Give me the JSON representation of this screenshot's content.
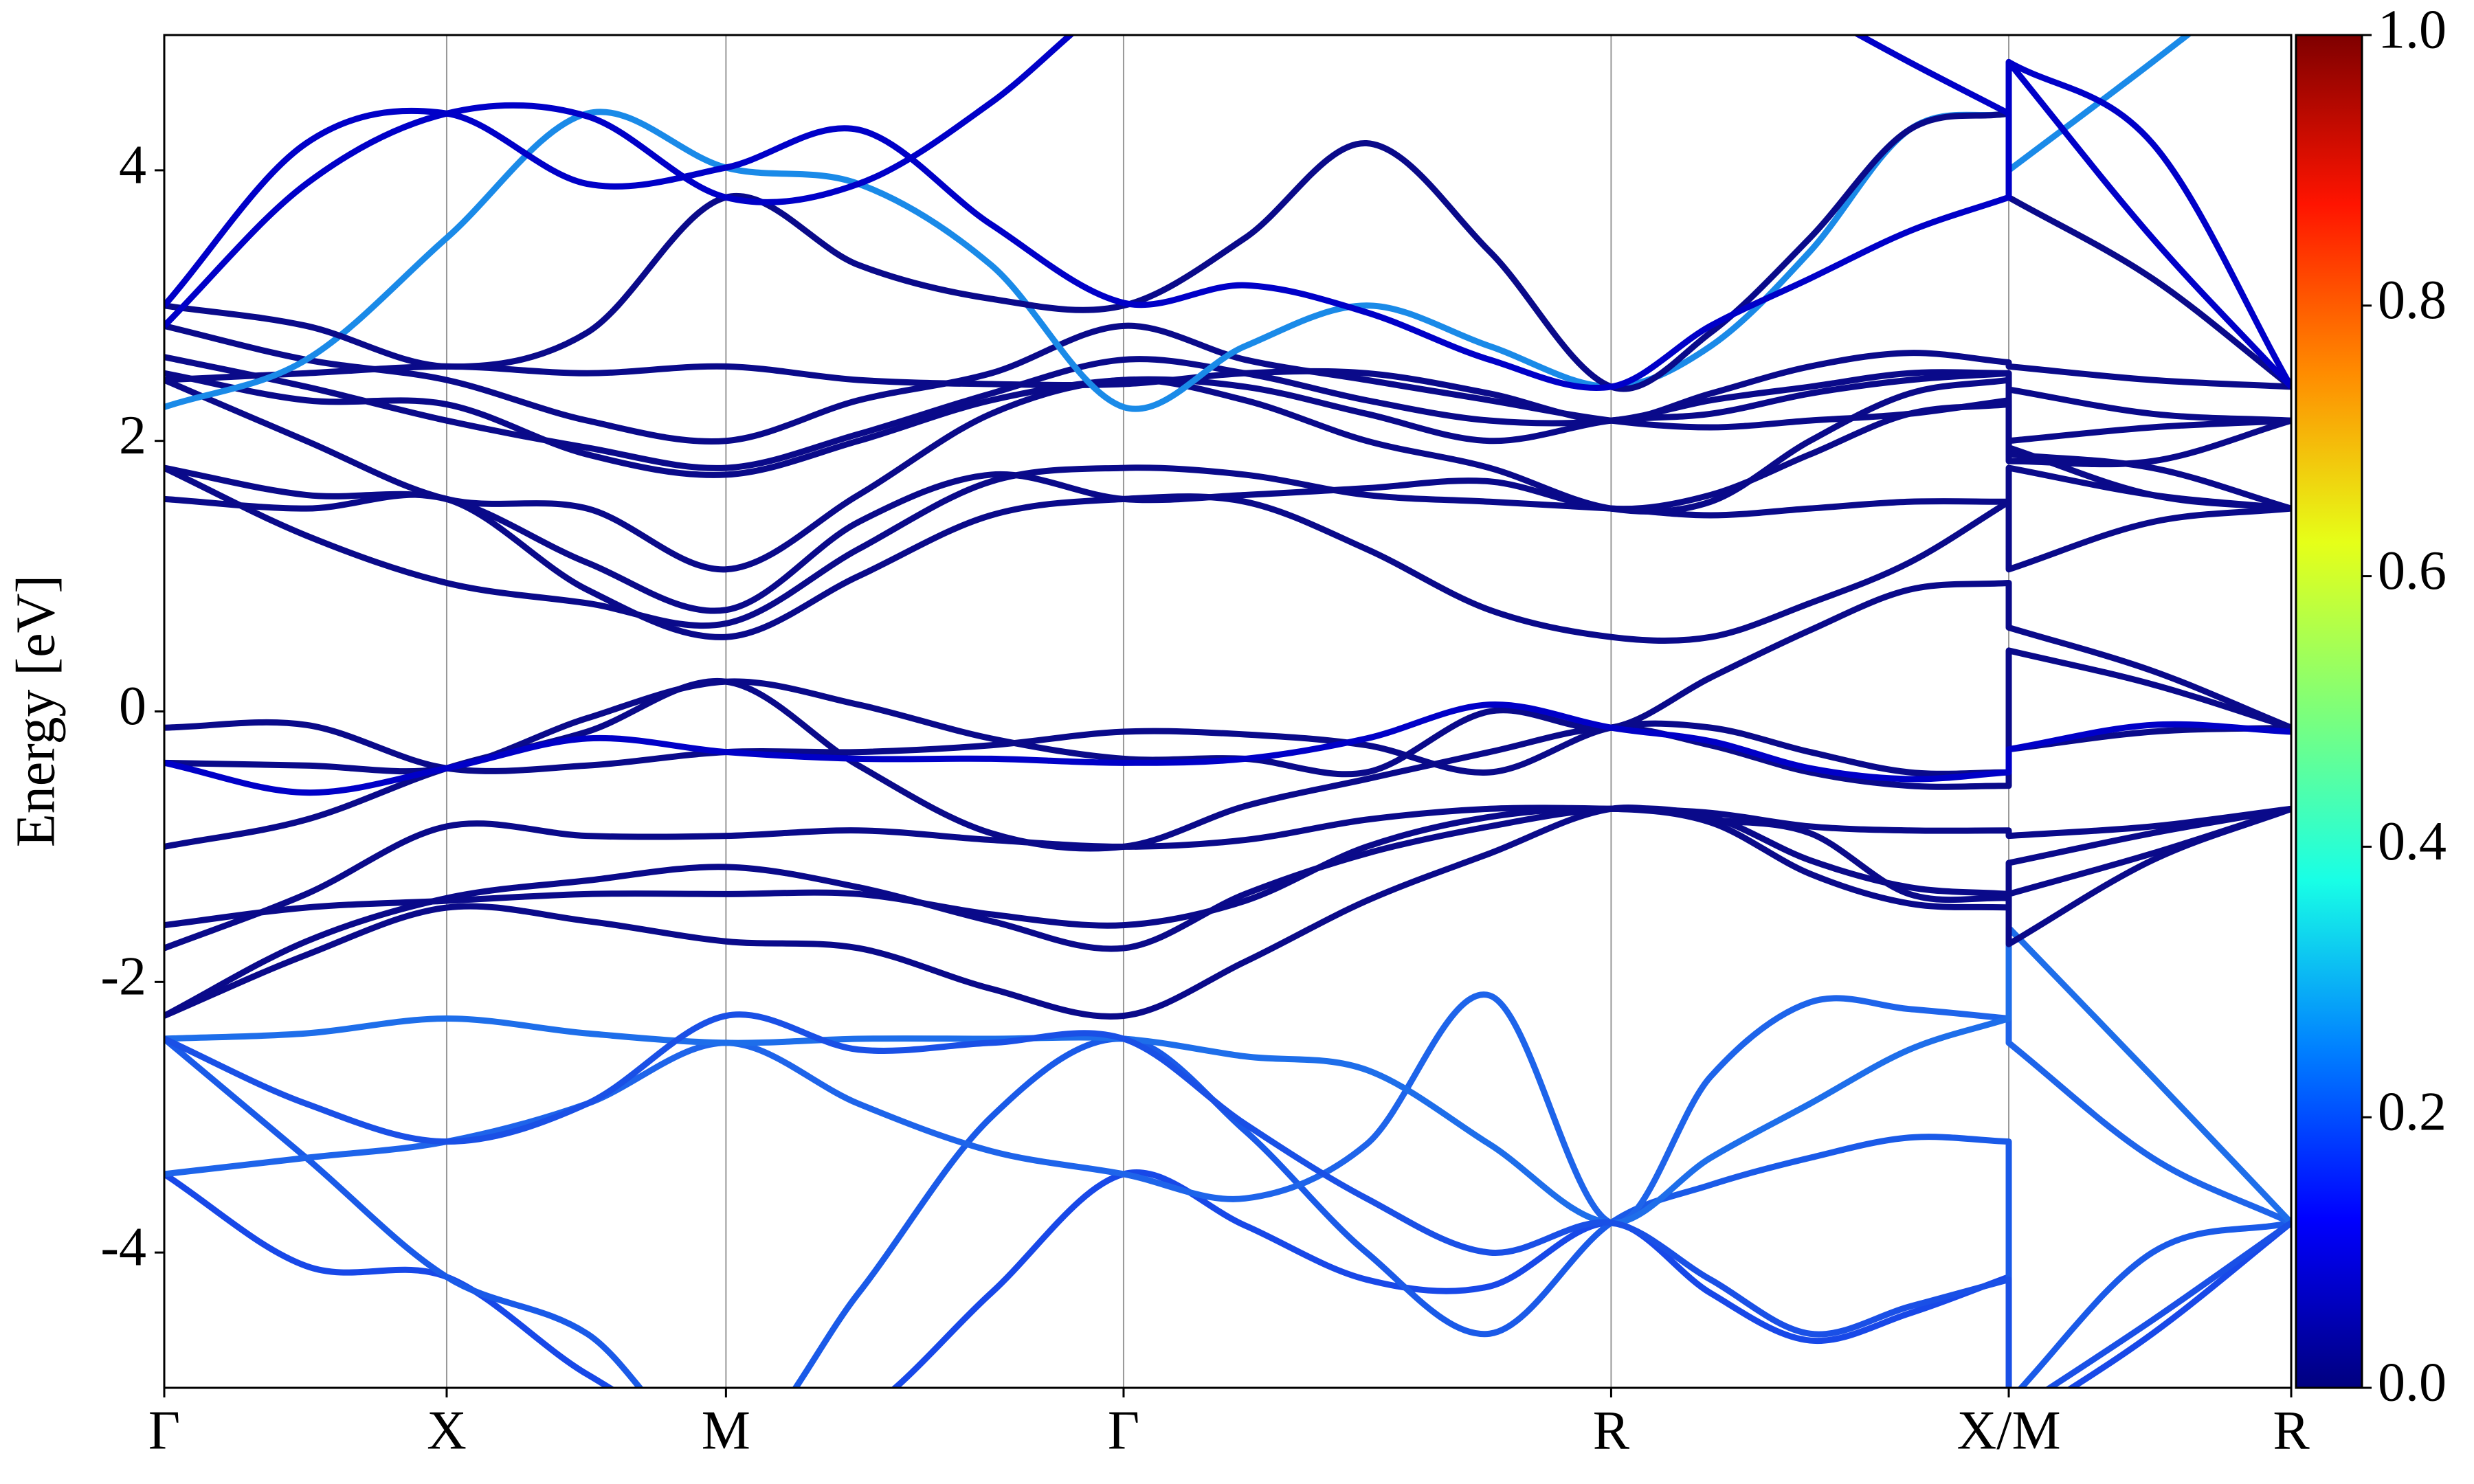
{
  "chart_data": {
    "type": "line",
    "ylabel": "Energy [eV]",
    "xlim": [
      0,
      13.48
    ],
    "ylim": [
      -5,
      5
    ],
    "yticks": [
      -4,
      -2,
      0,
      2,
      4
    ],
    "xticks": [
      {
        "value": 0,
        "label": "Γ"
      },
      {
        "value": 1.79,
        "label": "X"
      },
      {
        "value": 3.56,
        "label": "M"
      },
      {
        "value": 6.08,
        "label": "Γ"
      },
      {
        "value": 9.17,
        "label": "R"
      },
      {
        "value": 11.69,
        "label": "X/M"
      },
      {
        "value": 13.48,
        "label": "R"
      }
    ],
    "grid": true,
    "x": [
      0,
      0.9,
      1.79,
      2.68,
      3.56,
      4.4,
      5.24,
      6.08,
      6.85,
      7.62,
      8.4,
      9.17,
      9.8,
      10.43,
      11.06,
      11.69,
      11.69,
      12.6,
      13.48
    ],
    "series": [
      {
        "color": "#1848e8",
        "values": [
          -3.42,
          -4.1,
          -4.18,
          -4.9,
          -5.4,
          -5.2,
          -4.3,
          -3.42,
          -3.8,
          -4.2,
          -4.25,
          -3.78,
          -4.3,
          -4.65,
          -4.45,
          -4.18,
          -5.3,
          -4.6,
          -3.78
        ]
      },
      {
        "color": "#1a5ae8",
        "values": [
          -2.42,
          -3.3,
          -4.18,
          -4.6,
          -5.5,
          -4.3,
          -3.0,
          -2.42,
          -3.1,
          -4.0,
          -4.6,
          -3.78,
          -3.5,
          -3.3,
          -3.15,
          -3.18,
          -5.1,
          -4.0,
          -3.78
        ]
      },
      {
        "color": "#1e64ea",
        "values": [
          -3.42,
          -3.3,
          -3.18,
          -2.9,
          -2.45,
          -2.9,
          -3.25,
          -3.42,
          -3.6,
          -3.2,
          -2.1,
          -3.78,
          -2.7,
          -2.15,
          -2.2,
          -2.27,
          -2.45,
          -3.3,
          -3.78
        ]
      },
      {
        "color": "#1e6eea",
        "values": [
          -2.42,
          -2.38,
          -2.27,
          -2.38,
          -2.45,
          -2.42,
          -2.42,
          -2.42,
          -2.55,
          -2.65,
          -3.2,
          -3.78,
          -3.3,
          -2.9,
          -2.5,
          -2.27,
          -1.6,
          -2.7,
          -3.78
        ]
      },
      {
        "color": "#1a50e6",
        "values": [
          -2.42,
          -2.9,
          -3.18,
          -2.9,
          -2.25,
          -2.5,
          -2.45,
          -2.42,
          -3.05,
          -3.6,
          -4.0,
          -3.78,
          -4.2,
          -4.6,
          -4.4,
          -4.2,
          -5.2,
          -4.5,
          -3.78
        ]
      },
      {
        "color": "#0a0a8a",
        "values": [
          -2.25,
          -1.8,
          -1.45,
          -1.55,
          -1.7,
          -1.75,
          -2.05,
          -2.25,
          -1.85,
          -1.4,
          -1.05,
          -0.72,
          -0.8,
          -0.9,
          -1.35,
          -1.38,
          -1.72,
          -1.1,
          -0.72
        ]
      },
      {
        "color": "#0a0a8a",
        "values": [
          -1.75,
          -1.35,
          -0.85,
          -0.92,
          -0.92,
          -0.88,
          -0.95,
          -1.0,
          -0.95,
          -0.8,
          -0.72,
          -0.72,
          -0.75,
          -0.85,
          -0.88,
          -0.88,
          -0.92,
          -0.85,
          -0.72
        ]
      },
      {
        "color": "#0a0a8a",
        "values": [
          -1.58,
          -1.45,
          -1.4,
          -1.35,
          -1.35,
          -1.35,
          -1.5,
          -1.58,
          -1.4,
          -1.0,
          -0.78,
          -0.72,
          -0.82,
          -1.2,
          -1.42,
          -1.45,
          -1.12,
          -0.9,
          -0.72
        ]
      },
      {
        "color": "#0a0a8a",
        "values": [
          -2.25,
          -1.7,
          -1.38,
          -1.25,
          -1.15,
          -1.3,
          -1.55,
          -1.75,
          -1.35,
          -1.05,
          -0.85,
          -0.72,
          -0.78,
          -1.1,
          -1.3,
          -1.35,
          -1.35,
          -1.05,
          -0.72
        ]
      },
      {
        "color": "#0a0a8a",
        "values": [
          -1.0,
          -0.8,
          -0.42,
          -0.15,
          0.22,
          -0.4,
          -0.9,
          -1.0,
          -0.7,
          -0.5,
          -0.3,
          -0.12,
          -0.25,
          -0.45,
          -0.55,
          -0.55,
          -0.28,
          -0.15,
          -0.12
        ]
      },
      {
        "color": "#0a0a8a",
        "values": [
          -0.38,
          -0.4,
          -0.42,
          -0.05,
          0.22,
          0.05,
          -0.2,
          -0.35,
          -0.35,
          -0.45,
          0.0,
          -0.12,
          0.25,
          0.6,
          0.9,
          0.95,
          0.62,
          0.3,
          -0.12
        ]
      },
      {
        "color": "#0a0a8a",
        "values": [
          -0.12,
          -0.1,
          -0.42,
          -0.4,
          -0.3,
          -0.3,
          -0.25,
          -0.15,
          -0.17,
          -0.25,
          -0.45,
          -0.12,
          -0.12,
          -0.3,
          -0.45,
          -0.45,
          0.45,
          0.2,
          -0.12
        ]
      },
      {
        "color": "#0000c8",
        "values": [
          -0.38,
          -0.6,
          -0.42,
          -0.2,
          -0.3,
          -0.35,
          -0.35,
          -0.38,
          -0.35,
          -0.2,
          0.05,
          -0.12,
          -0.22,
          -0.42,
          -0.5,
          -0.45,
          -0.28,
          -0.1,
          -0.15
        ]
      },
      {
        "color": "#0a0a8a",
        "values": [
          1.57,
          1.5,
          1.57,
          0.9,
          0.55,
          1.0,
          1.45,
          1.57,
          1.55,
          1.2,
          0.75,
          0.55,
          0.55,
          0.8,
          1.1,
          1.55,
          1.05,
          1.4,
          1.5
        ]
      },
      {
        "color": "#0a0a8a",
        "values": [
          1.8,
          1.3,
          0.95,
          0.8,
          0.65,
          1.2,
          1.7,
          1.8,
          1.75,
          1.6,
          1.55,
          1.5,
          1.45,
          1.5,
          1.55,
          1.55,
          1.8,
          1.6,
          1.5
        ]
      },
      {
        "color": "#0a0a8a",
        "values": [
          1.8,
          1.6,
          1.57,
          1.1,
          0.75,
          1.4,
          1.75,
          1.57,
          1.6,
          1.65,
          1.7,
          1.5,
          1.6,
          1.9,
          2.2,
          2.27,
          1.9,
          1.8,
          1.5
        ]
      },
      {
        "color": "#0a0a8a",
        "values": [
          2.45,
          2.0,
          1.57,
          1.5,
          1.05,
          1.6,
          2.2,
          2.45,
          2.3,
          2.0,
          1.8,
          1.5,
          1.55,
          2.0,
          2.35,
          2.45,
          1.95,
          1.6,
          1.5
        ]
      },
      {
        "color": "#0a0a8a",
        "values": [
          2.5,
          2.3,
          2.27,
          1.9,
          1.75,
          2.0,
          2.3,
          2.45,
          2.4,
          2.2,
          2.0,
          2.15,
          2.2,
          2.35,
          2.45,
          2.5,
          2.0,
          2.1,
          2.15
        ]
      },
      {
        "color": "#0a0a8a",
        "values": [
          2.62,
          2.4,
          2.15,
          1.95,
          1.8,
          2.05,
          2.35,
          2.6,
          2.5,
          2.3,
          2.15,
          2.15,
          2.3,
          2.4,
          2.5,
          2.5,
          2.38,
          2.2,
          2.15
        ]
      },
      {
        "color": "#0a0a8a",
        "values": [
          2.45,
          2.5,
          2.55,
          2.5,
          2.55,
          2.45,
          2.42,
          2.42,
          2.5,
          2.5,
          2.35,
          2.15,
          2.35,
          2.55,
          2.65,
          2.58,
          2.55,
          2.45,
          2.4
        ]
      },
      {
        "color": "#0a0a8a",
        "values": [
          2.85,
          2.6,
          2.45,
          2.15,
          2.0,
          2.3,
          2.5,
          2.85,
          2.6,
          2.45,
          2.3,
          2.15,
          2.1,
          2.15,
          2.2,
          2.3,
          1.85,
          1.85,
          2.15
        ]
      },
      {
        "color": "#1a8ae8",
        "values": [
          2.25,
          2.6,
          3.5,
          4.42,
          4.02,
          3.9,
          3.3,
          2.25,
          2.7,
          3.0,
          2.7,
          2.4,
          2.7,
          3.4,
          4.3,
          4.42,
          4.0,
          4.8,
          5.6
        ]
      },
      {
        "color": "#0a0a8a",
        "values": [
          3.0,
          2.85,
          2.55,
          2.8,
          3.8,
          3.3,
          3.05,
          3.0,
          3.5,
          4.2,
          3.4,
          2.4,
          2.8,
          3.5,
          4.3,
          4.42,
          3.8,
          3.2,
          2.4
        ]
      },
      {
        "color": "#0000c8",
        "values": [
          3.0,
          4.2,
          4.42,
          3.9,
          4.02,
          4.3,
          3.6,
          3.02,
          3.15,
          2.95,
          2.6,
          2.4,
          2.85,
          3.2,
          3.55,
          3.8,
          4.8,
          3.5,
          2.4
        ]
      },
      {
        "color": "#0000c8",
        "values": [
          2.85,
          3.9,
          4.42,
          4.4,
          3.8,
          3.9,
          4.5,
          5.3,
          5.6,
          5.4,
          5.2,
          5.4,
          5.6,
          5.2,
          4.8,
          4.42,
          4.8,
          4.2,
          2.4
        ]
      }
    ],
    "colorbar": {
      "clim": [
        0,
        1
      ],
      "colors": [
        "#00007f",
        "#0000ff",
        "#0080ff",
        "#18ffe6",
        "#7dff7a",
        "#e6ff18",
        "#ff8c00",
        "#ff1400",
        "#7f0000"
      ],
      "ticks": [
        {
          "value": 0,
          "label": "0.0"
        },
        {
          "value": 0.2,
          "label": "0.2"
        },
        {
          "value": 0.4,
          "label": "0.4"
        },
        {
          "value": 0.6,
          "label": "0.6"
        },
        {
          "value": 0.8,
          "label": "0.8"
        },
        {
          "value": 1,
          "label": "1.0"
        }
      ]
    }
  }
}
